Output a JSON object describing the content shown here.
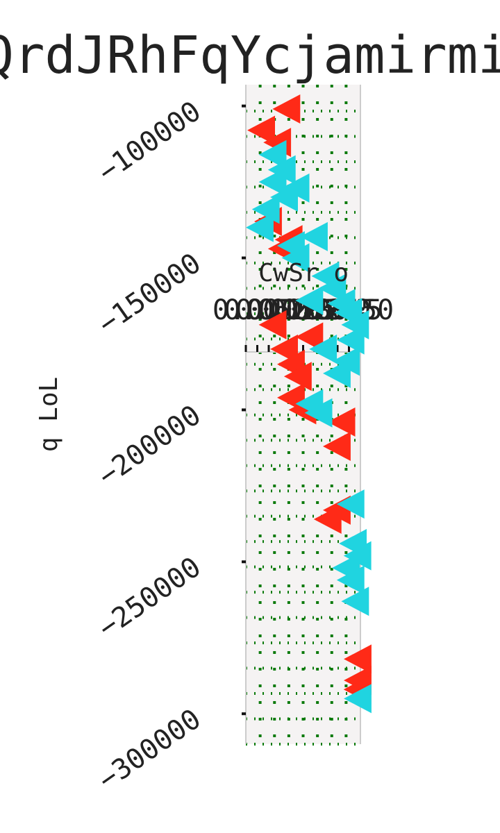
{
  "chart_data": {
    "type": "scatter",
    "title": "QrdJRhFqYcjamirmi",
    "xlabel": "CwSr o",
    "ylabel": "q LoL",
    "x_tick_labels": [
      "0.00",
      "0.05",
      "0.10",
      "0.15",
      "0.20",
      "0.25",
      "0.30",
      "0.35",
      "0.40",
      "0.45",
      "0.50"
    ],
    "y_tick_labels": [
      "−100000",
      "−150000",
      "−200000",
      "−250000",
      "−300000"
    ],
    "y_ticks": [
      -100000,
      -150000,
      -200000,
      -250000,
      -300000
    ],
    "xlim": [
      0.0,
      0.5
    ],
    "ylim": [
      -310000,
      -93000
    ],
    "grid": true,
    "colors": {
      "series_red": "#ff2a17",
      "series_cyan": "#20d4e0",
      "grid": "#0a7a0a",
      "plot_bg": "#f5f3f3",
      "spines": "#cccccc"
    },
    "marker": "triangle-left",
    "series": [
      {
        "color": "#ff2a17",
        "points": [
          [
            0.18,
            -101000
          ],
          [
            0.07,
            -108000
          ],
          [
            0.14,
            -112000
          ],
          [
            0.1,
            -138000
          ],
          [
            0.19,
            -144000
          ],
          [
            0.16,
            -147000
          ],
          [
            0.12,
            -172000
          ],
          [
            0.28,
            -176000
          ],
          [
            0.17,
            -180000
          ],
          [
            0.2,
            -185000
          ],
          [
            0.23,
            -189000
          ],
          [
            0.2,
            -196000
          ],
          [
            0.25,
            -200000
          ],
          [
            0.42,
            -204000
          ],
          [
            0.4,
            -212000
          ],
          [
            0.4,
            -233000
          ],
          [
            0.36,
            -236000
          ],
          [
            0.5,
            -282000
          ],
          [
            0.5,
            -289000
          ],
          [
            0.49,
            -292000
          ]
        ]
      },
      {
        "color": "#20d4e0",
        "points": [
          [
            0.12,
            -116000
          ],
          [
            0.16,
            -121000
          ],
          [
            0.12,
            -125000
          ],
          [
            0.22,
            -127000
          ],
          [
            0.17,
            -130000
          ],
          [
            0.09,
            -134000
          ],
          [
            0.05,
            -140000
          ],
          [
            0.3,
            -143000
          ],
          [
            0.2,
            -146000
          ],
          [
            0.22,
            -150000
          ],
          [
            0.35,
            -156000
          ],
          [
            0.38,
            -160000
          ],
          [
            0.28,
            -164000
          ],
          [
            0.42,
            -165000
          ],
          [
            0.45,
            -168000
          ],
          [
            0.48,
            -172000
          ],
          [
            0.46,
            -177000
          ],
          [
            0.34,
            -180000
          ],
          [
            0.44,
            -184000
          ],
          [
            0.4,
            -188000
          ],
          [
            0.28,
            -198000
          ],
          [
            0.32,
            -201000
          ],
          [
            0.46,
            -231000
          ],
          [
            0.47,
            -244000
          ],
          [
            0.49,
            -248000
          ],
          [
            0.44,
            -252000
          ],
          [
            0.46,
            -256000
          ],
          [
            0.48,
            -263000
          ],
          [
            0.5,
            -295000
          ]
        ]
      }
    ]
  }
}
